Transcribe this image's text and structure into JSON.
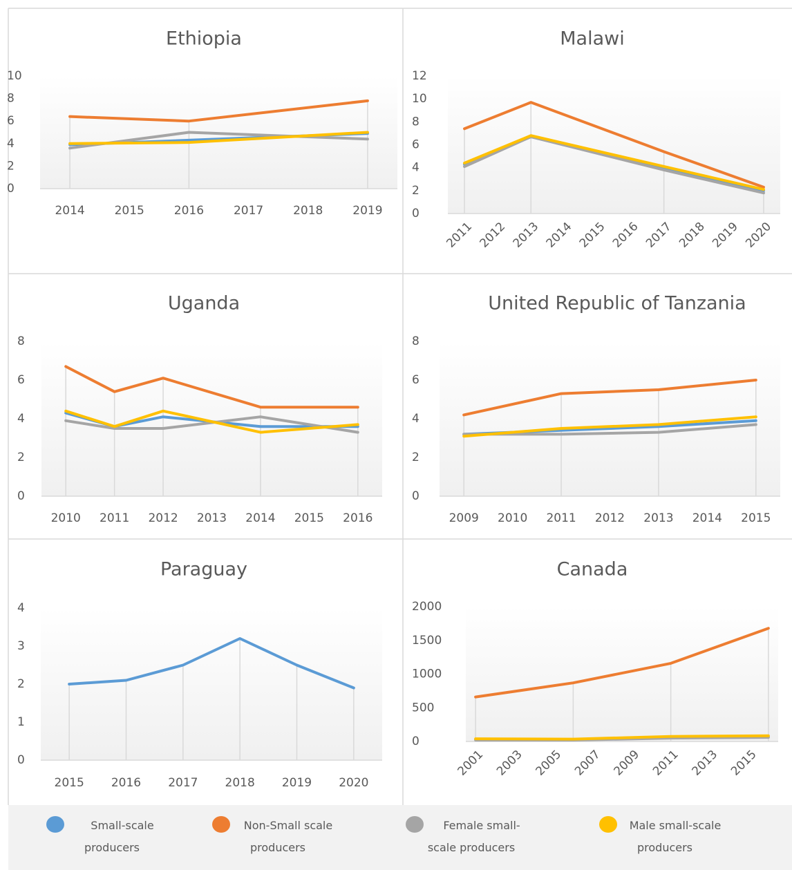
{
  "legend": [
    {
      "name": "Small-scale producers",
      "color": "#5b9bd5"
    },
    {
      "name": "Non-Small scale producers",
      "color": "#ed7d31"
    },
    {
      "name": "Female small-scale producers",
      "color": "#a5a5a5"
    },
    {
      "name": "Male small-scale producers",
      "color": "#ffc000"
    }
  ],
  "chart_data": [
    {
      "type": "line",
      "title": "Ethiopia",
      "x": [
        2014,
        2016,
        2019
      ],
      "xlim": [
        2013.5,
        2019.5
      ],
      "xticks": [
        2014,
        2015,
        2016,
        2017,
        2018,
        2019
      ],
      "ylim": [
        0,
        10
      ],
      "yticks": [
        0,
        2,
        4,
        6,
        8,
        10
      ],
      "series": [
        {
          "color": "#5b9bd5",
          "values": [
            3.9,
            4.3,
            4.9
          ]
        },
        {
          "color": "#ed7d31",
          "values": [
            6.4,
            6.0,
            7.8
          ]
        },
        {
          "color": "#a5a5a5",
          "values": [
            3.6,
            5.0,
            4.4
          ]
        },
        {
          "color": "#ffc000",
          "values": [
            4.0,
            4.1,
            5.0
          ]
        }
      ]
    },
    {
      "type": "line",
      "title": "Malawi",
      "x": [
        2011,
        2013,
        2017,
        2020
      ],
      "xlim": [
        2010.5,
        2020.5
      ],
      "xticks": [
        2011,
        2012,
        2013,
        2014,
        2015,
        2016,
        2017,
        2018,
        2019,
        2020
      ],
      "ylim": [
        0,
        12
      ],
      "yticks": [
        0,
        2,
        4,
        6,
        8,
        10,
        12
      ],
      "series": [
        {
          "color": "#5b9bd5",
          "values": [
            4.3,
            6.7,
            3.9,
            2.0
          ]
        },
        {
          "color": "#ed7d31",
          "values": [
            7.4,
            9.7,
            5.4,
            2.3
          ]
        },
        {
          "color": "#a5a5a5",
          "values": [
            4.1,
            6.7,
            3.8,
            1.8
          ]
        },
        {
          "color": "#ffc000",
          "values": [
            4.4,
            6.8,
            4.1,
            2.1
          ]
        }
      ]
    },
    {
      "type": "line",
      "title": "Uganda",
      "x": [
        2010,
        2011,
        2012,
        2014,
        2016
      ],
      "xlim": [
        2009.5,
        2016.5
      ],
      "xticks": [
        2010,
        2011,
        2012,
        2013,
        2014,
        2015,
        2016
      ],
      "ylim": [
        0,
        8
      ],
      "yticks": [
        0,
        2,
        4,
        6,
        8
      ],
      "series": [
        {
          "color": "#5b9bd5",
          "values": [
            4.3,
            3.6,
            4.1,
            3.6,
            3.6
          ]
        },
        {
          "color": "#ed7d31",
          "values": [
            6.7,
            5.4,
            6.1,
            4.6,
            4.6
          ]
        },
        {
          "color": "#a5a5a5",
          "values": [
            3.9,
            3.5,
            3.5,
            4.1,
            3.3
          ]
        },
        {
          "color": "#ffc000",
          "values": [
            4.4,
            3.6,
            4.4,
            3.3,
            3.7
          ]
        }
      ]
    },
    {
      "type": "line",
      "title": "United Republic of Tanzania",
      "x": [
        2009,
        2011,
        2013,
        2015
      ],
      "xlim": [
        2008.5,
        2015.5
      ],
      "xticks": [
        2009,
        2010,
        2011,
        2012,
        2013,
        2014,
        2015
      ],
      "ylim": [
        0,
        8
      ],
      "yticks": [
        0,
        2,
        4,
        6,
        8
      ],
      "series": [
        {
          "color": "#5b9bd5",
          "values": [
            3.2,
            3.4,
            3.6,
            3.9
          ]
        },
        {
          "color": "#ed7d31",
          "values": [
            4.2,
            5.3,
            5.5,
            6.0
          ]
        },
        {
          "color": "#a5a5a5",
          "values": [
            3.2,
            3.2,
            3.3,
            3.7
          ]
        },
        {
          "color": "#ffc000",
          "values": [
            3.1,
            3.5,
            3.7,
            4.1
          ]
        }
      ]
    },
    {
      "type": "line",
      "title": "Paraguay",
      "x": [
        2015,
        2016,
        2017,
        2018,
        2019,
        2020
      ],
      "xlim": [
        2014.5,
        2020.5
      ],
      "xticks": [
        2015,
        2016,
        2017,
        2018,
        2019,
        2020
      ],
      "ylim": [
        0,
        4
      ],
      "yticks": [
        0,
        1,
        2,
        3,
        4
      ],
      "series": [
        {
          "color": "#5b9bd5",
          "values": [
            2.0,
            2.1,
            2.5,
            3.2,
            2.5,
            1.9
          ]
        }
      ]
    },
    {
      "type": "line",
      "title": "Canada",
      "x": [
        2001,
        2006,
        2011,
        2016
      ],
      "xlim": [
        2000.5,
        2016.5
      ],
      "xticks": [
        2001,
        2003,
        2005,
        2007,
        2009,
        2011,
        2013,
        2015
      ],
      "ylim": [
        0,
        2000
      ],
      "yticks": [
        0,
        500,
        1000,
        1500,
        2000
      ],
      "series": [
        {
          "color": "#5b9bd5",
          "values": [
            30,
            30,
            60,
            70
          ]
        },
        {
          "color": "#ed7d31",
          "values": [
            660,
            870,
            1160,
            1680
          ]
        },
        {
          "color": "#a5a5a5",
          "values": [
            20,
            20,
            50,
            60
          ]
        },
        {
          "color": "#ffc000",
          "values": [
            40,
            35,
            75,
            85
          ]
        }
      ]
    }
  ]
}
